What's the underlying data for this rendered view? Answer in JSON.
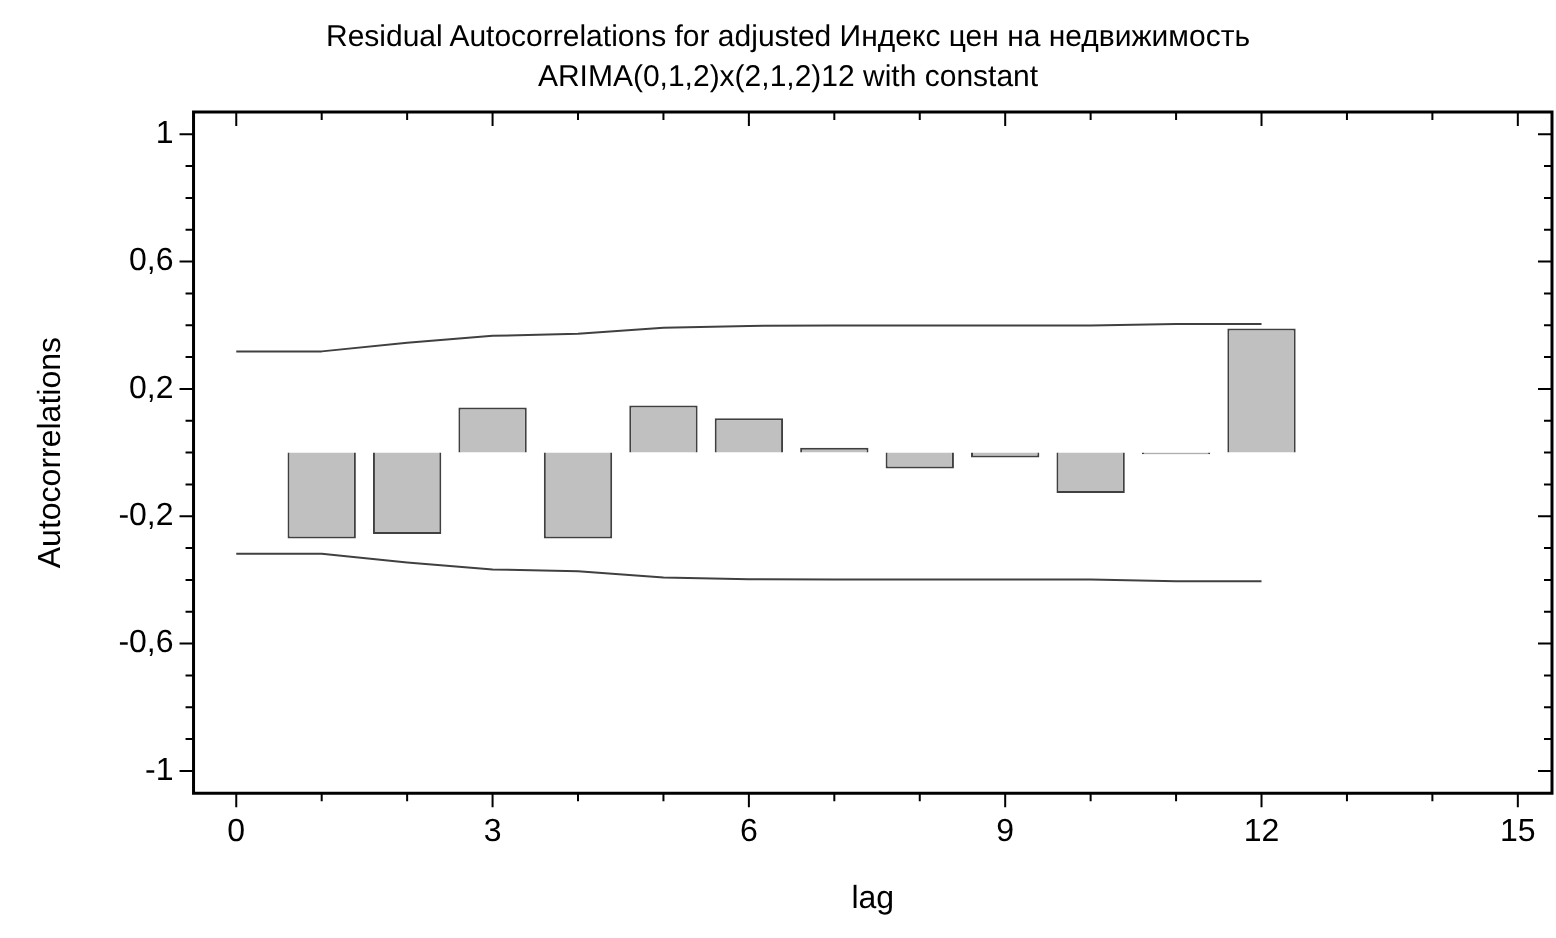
{
  "chart_data": {
    "type": "bar",
    "title": "Residual Autocorrelations for adjusted Индекс цен на недвижимость",
    "subtitle": "ARIMA(0,1,2)x(2,1,2)12 with constant",
    "xlabel": "lag",
    "ylabel": "Autocorrelations",
    "xlim": [
      -0.5,
      15.4
    ],
    "ylim": [
      -1.07,
      1.07
    ],
    "xticks": [
      0,
      {
        "value": 1,
        "label": null
      },
      {
        "value": 2,
        "label": null
      },
      3,
      {
        "value": 4,
        "label": null
      },
      {
        "value": 5,
        "label": null
      },
      6,
      {
        "value": 7,
        "label": null
      },
      {
        "value": 8,
        "label": null
      },
      9,
      {
        "value": 10,
        "label": null
      },
      {
        "value": 11,
        "label": null
      },
      12,
      {
        "value": 13,
        "label": null
      },
      {
        "value": 14,
        "label": null
      },
      15
    ],
    "yticks": [
      {
        "value": -1,
        "label": "-1"
      },
      {
        "value": -0.9,
        "label": null
      },
      {
        "value": -0.8,
        "label": null
      },
      {
        "value": -0.7,
        "label": null
      },
      {
        "value": -0.6,
        "label": "-0,6"
      },
      {
        "value": -0.5,
        "label": null
      },
      {
        "value": -0.4,
        "label": null
      },
      {
        "value": -0.3,
        "label": null
      },
      {
        "value": -0.2,
        "label": "-0,2"
      },
      {
        "value": -0.1,
        "label": null
      },
      {
        "value": 0,
        "label": null
      },
      {
        "value": 0.1,
        "label": null
      },
      {
        "value": 0.2,
        "label": "0,2"
      },
      {
        "value": 0.3,
        "label": null
      },
      {
        "value": 0.4,
        "label": null
      },
      {
        "value": 0.5,
        "label": null
      },
      {
        "value": 0.6,
        "label": "0,6"
      },
      {
        "value": 0.7,
        "label": null
      },
      {
        "value": 0.8,
        "label": null
      },
      {
        "value": 0.9,
        "label": null
      },
      {
        "value": 1,
        "label": "1"
      }
    ],
    "grid": false,
    "legend": false,
    "series": [
      {
        "color": "#c0c0c0",
        "x": [
          1,
          2,
          3,
          4,
          5,
          6,
          7,
          8,
          9,
          10,
          11,
          12
        ],
        "values": [
          -0.27,
          -0.256,
          0.142,
          -0.27,
          0.148,
          0.108,
          0.015,
          -0.05,
          -0.015,
          -0.127,
          -0.005,
          0.39
        ]
      },
      {
        "type": "line",
        "color": "#404040",
        "marker": "none",
        "x": [
          0,
          1,
          2,
          3,
          4,
          5,
          6,
          7,
          8,
          9,
          10,
          11,
          12
        ],
        "values": [
          0.318,
          0.318,
          0.345,
          0.367,
          0.373,
          0.392,
          0.398,
          0.399,
          0.399,
          0.399,
          0.399,
          0.404,
          0.404
        ]
      },
      {
        "type": "line",
        "color": "#404040",
        "marker": "none",
        "x": [
          0,
          1,
          2,
          3,
          4,
          5,
          6,
          7,
          8,
          9,
          10,
          11,
          12
        ],
        "values": [
          -0.318,
          -0.318,
          -0.345,
          -0.367,
          -0.373,
          -0.392,
          -0.398,
          -0.399,
          -0.399,
          -0.399,
          -0.399,
          -0.404,
          -0.404
        ]
      }
    ]
  }
}
